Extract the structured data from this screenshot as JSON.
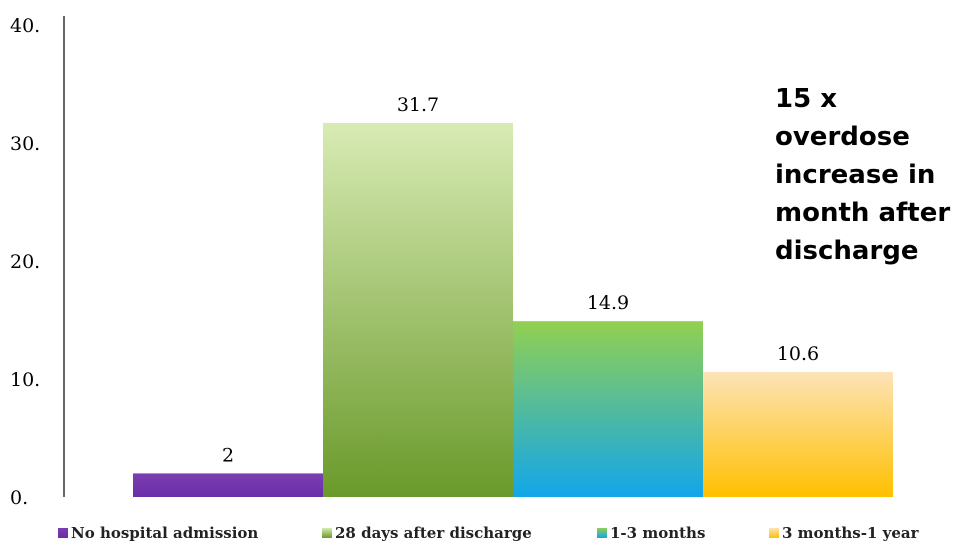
{
  "chart_data": {
    "type": "bar",
    "categories": [
      "No hospital admission",
      "28 days after discharge",
      "1-3 months",
      "3 months-1 year"
    ],
    "values": [
      2,
      31.7,
      14.9,
      10.6
    ],
    "data_labels": [
      "2",
      "31.7",
      "14.9",
      "10.6"
    ],
    "yticks": [
      0,
      10,
      20,
      30,
      40
    ],
    "ytick_labels": [
      "0.",
      "10.",
      "20.",
      "30.",
      "40."
    ],
    "ylim": [
      0,
      40
    ],
    "title": "",
    "xlabel": "",
    "ylabel": "",
    "grid": false,
    "legend_position": "bottom",
    "colors": [
      {
        "top": "#7b3fb0",
        "bottom": "#6a2da8"
      },
      {
        "top": "#d8ebb4",
        "bottom": "#6a9a2a"
      },
      {
        "top": "#92d050",
        "bottom": "#12a6ea"
      },
      {
        "top": "#fde3b8",
        "bottom": "#ffc000"
      }
    ],
    "annotation": [
      "15 x overdose",
      "increase in",
      "month after",
      "discharge"
    ]
  }
}
